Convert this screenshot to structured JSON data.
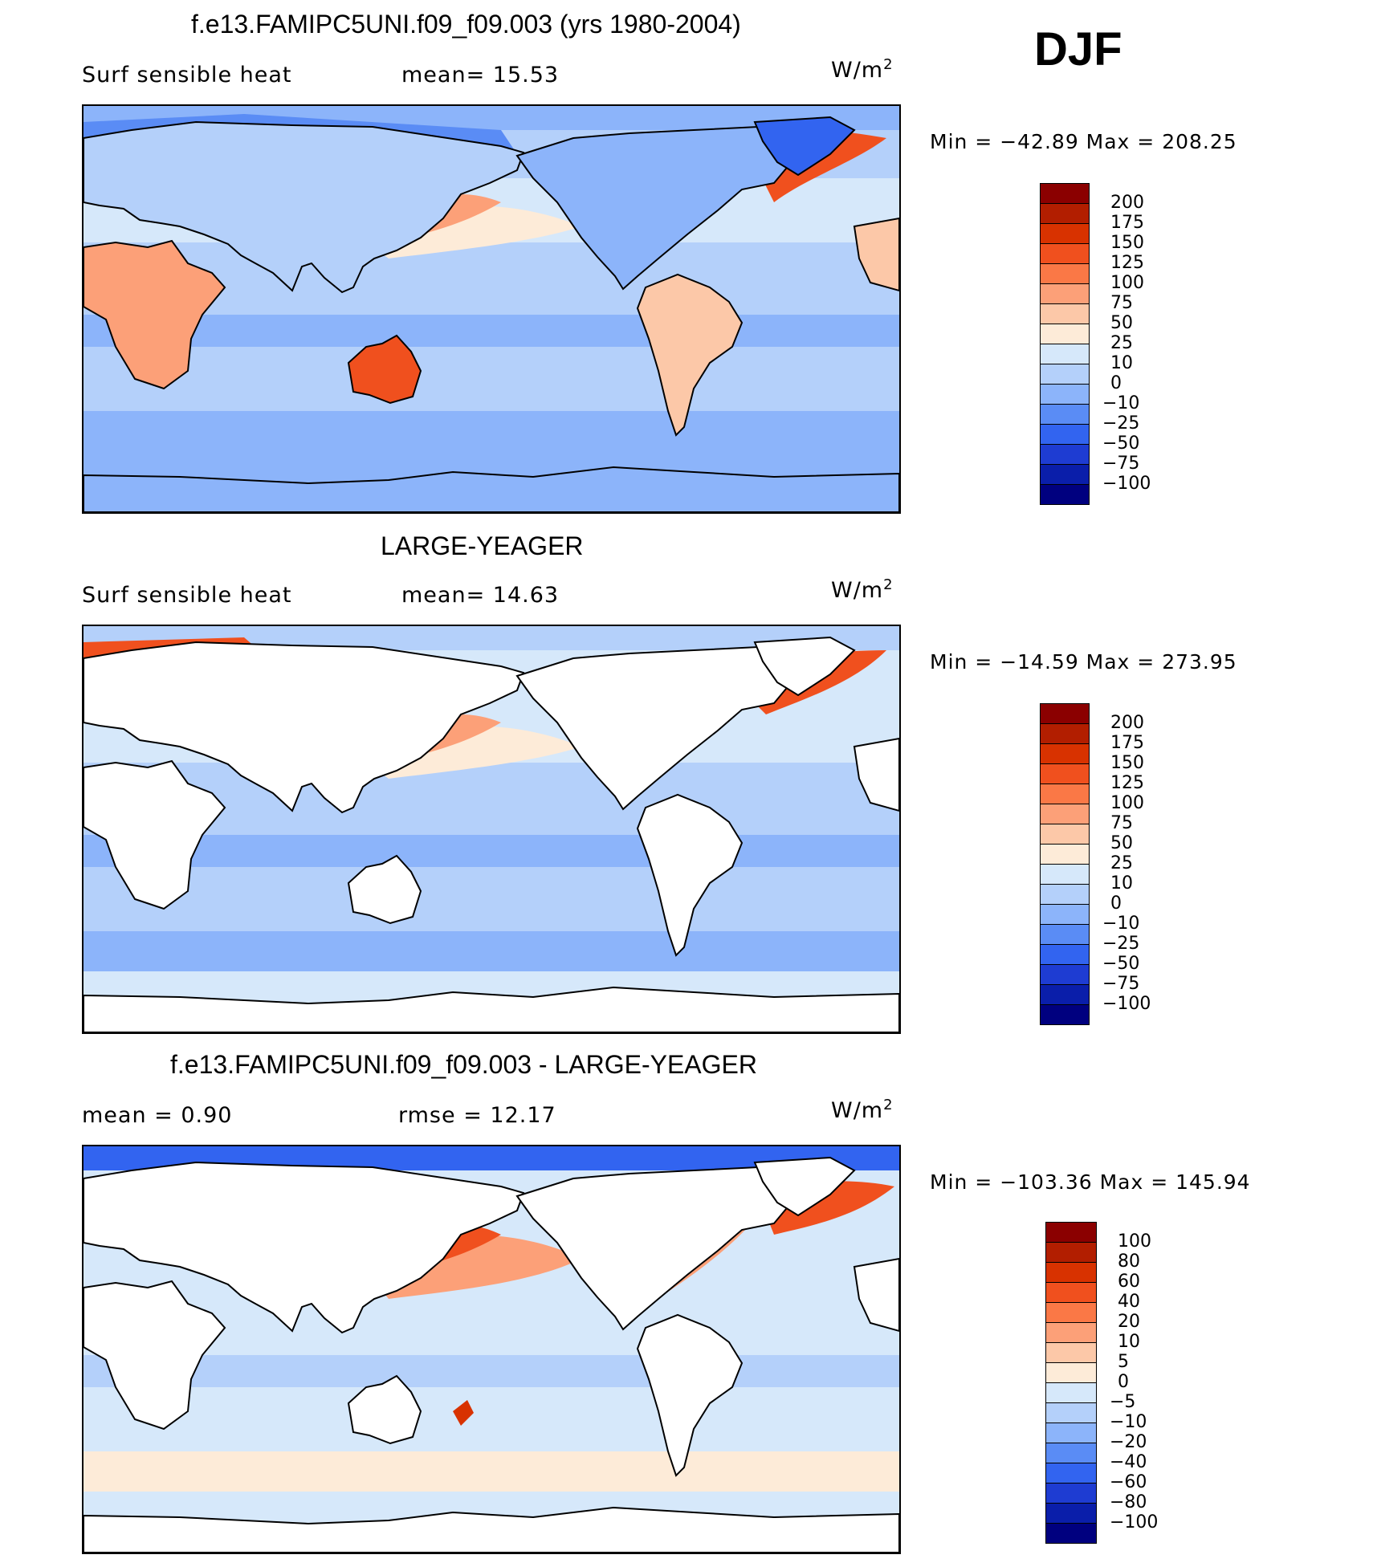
{
  "season": "DJF",
  "panels": [
    {
      "title": "f.e13.FAMIPC5UNI.f09_f09.003 (yrs 1980-2004)",
      "left_label": "Surf  sensible  heat",
      "mid_label": "mean=   15.53",
      "units_base": "W/m",
      "units_exp": "2",
      "minmax": "Min  =  −42.89  Max  =  208.25",
      "land_filled": true
    },
    {
      "title": "LARGE-YEAGER",
      "left_label": "Surf  sensible  heat",
      "mid_label": "mean=   14.63",
      "units_base": "W/m",
      "units_exp": "2",
      "minmax": "Min  =  −14.59  Max  =  273.95",
      "land_filled": false
    },
    {
      "title": "f.e13.FAMIPC5UNI.f09_f09.003 - LARGE-YEAGER",
      "left_label": "mean  =     0.90",
      "mid_label": "rmse  =    12.17",
      "units_base": "W/m",
      "units_exp": "2",
      "minmax": "Min  =  −103.36  Max  =  145.94",
      "land_filled": false
    }
  ],
  "colorbars": [
    {
      "labels": [
        "200",
        "175",
        "150",
        "125",
        "100",
        "75",
        "50",
        "25",
        "10",
        "0",
        "−10",
        "−25",
        "−50",
        "−75",
        "−100"
      ],
      "colors": [
        "#8b0000",
        "#b21e00",
        "#d83200",
        "#f0501e",
        "#fa7846",
        "#fca078",
        "#fcc8a8",
        "#fdebd8",
        "#d6e8fa",
        "#b4d0fa",
        "#8cb4fa",
        "#5a8cf5",
        "#3264f0",
        "#1e3cd2",
        "#0a1eaa",
        "#00007f"
      ]
    },
    {
      "labels": [
        "200",
        "175",
        "150",
        "125",
        "100",
        "75",
        "50",
        "25",
        "10",
        "0",
        "−10",
        "−25",
        "−50",
        "−75",
        "−100"
      ],
      "colors": [
        "#8b0000",
        "#b21e00",
        "#d83200",
        "#f0501e",
        "#fa7846",
        "#fca078",
        "#fcc8a8",
        "#fdebd8",
        "#d6e8fa",
        "#b4d0fa",
        "#8cb4fa",
        "#5a8cf5",
        "#3264f0",
        "#1e3cd2",
        "#0a1eaa",
        "#00007f"
      ]
    },
    {
      "labels": [
        "100",
        "80",
        "60",
        "40",
        "20",
        "10",
        "5",
        "0",
        "−5",
        "−10",
        "−20",
        "−40",
        "−60",
        "−80",
        "−100"
      ],
      "colors": [
        "#8b0000",
        "#b21e00",
        "#d83200",
        "#f0501e",
        "#fa7846",
        "#fca078",
        "#fcc8a8",
        "#fdebd8",
        "#d6e8fa",
        "#b4d0fa",
        "#8cb4fa",
        "#5a8cf5",
        "#3264f0",
        "#1e3cd2",
        "#0a1eaa",
        "#00007f"
      ]
    }
  ],
  "colors": {
    "ocean_fill": "#b4d0fa",
    "land_warm": "#fcc8a8",
    "land_cold": "#5a8cf5",
    "polar": "#8cb4fa",
    "hot": "#f0501e",
    "warm": "#fca078"
  }
}
